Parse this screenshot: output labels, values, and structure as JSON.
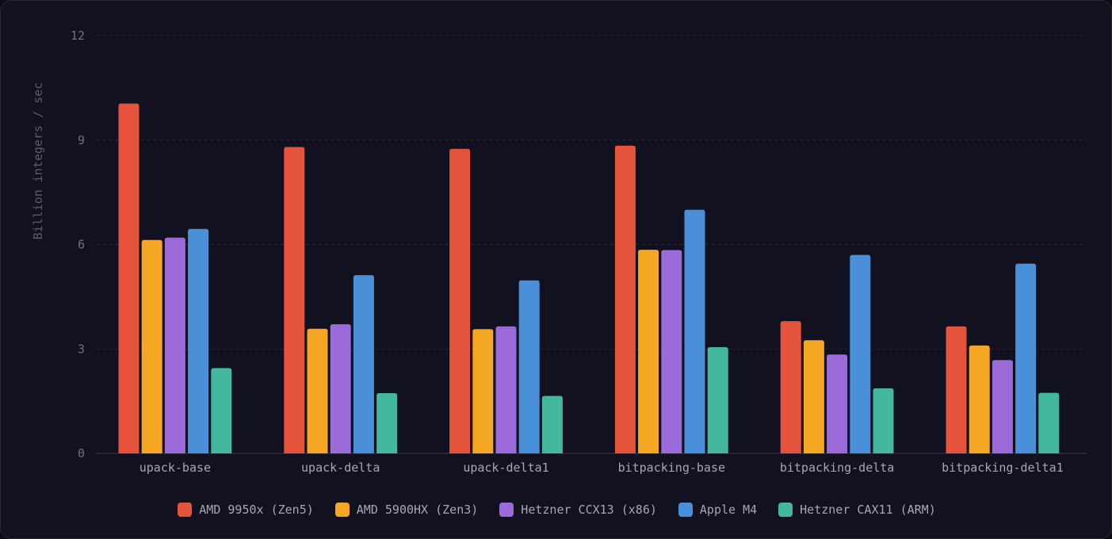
{
  "chart_data": {
    "type": "bar",
    "ylabel": "Billion integers / sec",
    "xlabel": "",
    "title": "",
    "ylim": [
      0,
      12
    ],
    "yticks": [
      0,
      3,
      6,
      9,
      12
    ],
    "grid": true,
    "legend_position": "bottom-center",
    "categories": [
      "upack-base",
      "upack-delta",
      "upack-delta1",
      "bitpacking-base",
      "bitpacking-delta",
      "bitpacking-delta1"
    ],
    "series": [
      {
        "name": "AMD 9950x (Zen5)",
        "color": "#e5533d",
        "values": [
          10.05,
          8.8,
          8.75,
          8.84,
          3.8,
          3.65
        ]
      },
      {
        "name": "AMD 5900HX (Zen3)",
        "color": "#f5a623",
        "values": [
          6.13,
          3.58,
          3.57,
          5.85,
          3.25,
          3.1
        ]
      },
      {
        "name": "Hetzner CCX13 (x86)",
        "color": "#9b6bd9",
        "values": [
          6.2,
          3.71,
          3.65,
          5.84,
          2.84,
          2.68
        ]
      },
      {
        "name": "Apple M4",
        "color": "#4a90d9",
        "values": [
          6.45,
          5.12,
          4.97,
          7.0,
          5.7,
          5.45
        ]
      },
      {
        "name": "Hetzner CAX11 (ARM)",
        "color": "#43b89c",
        "values": [
          2.45,
          1.73,
          1.65,
          3.05,
          1.87,
          1.74
        ]
      }
    ]
  },
  "colors": {
    "background": "#11111f",
    "grid": "#2a2a3a",
    "text": "#a6a6b6"
  }
}
